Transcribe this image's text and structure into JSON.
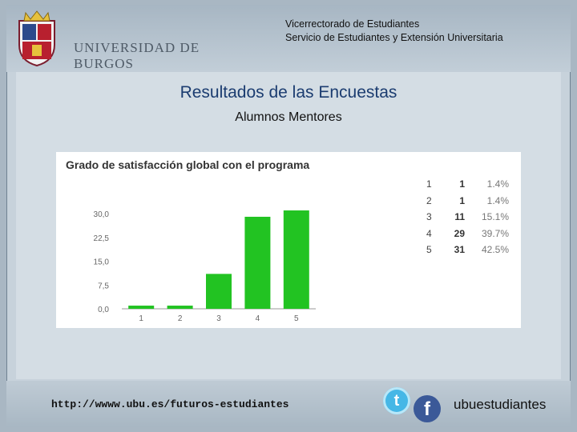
{
  "header": {
    "logo_text": "UNIVERSIDAD DE BURGOS",
    "line1": "Vicerrectorado de Estudiantes",
    "line2": "Servicio de Estudiantes y Extensión Universitaria"
  },
  "slide": {
    "title": "Resultados de las Encuestas",
    "subtitle": "Alumnos Mentores"
  },
  "chart_data": {
    "type": "bar",
    "title": "Grado de satisfacción global con el programa",
    "categories": [
      "1",
      "2",
      "3",
      "4",
      "5"
    ],
    "values": [
      1,
      1,
      11,
      29,
      31
    ],
    "ylim": [
      0,
      30
    ],
    "yticks": [
      "0,0",
      "7,5",
      "15,0",
      "22,5",
      "30,0"
    ],
    "bar_color": "#22c322",
    "grid": false,
    "legend": "none"
  },
  "summary_table": [
    {
      "option": "1",
      "count": "1",
      "percent": "1.4%"
    },
    {
      "option": "2",
      "count": "1",
      "percent": "1.4%"
    },
    {
      "option": "3",
      "count": "11",
      "percent": "15.1%"
    },
    {
      "option": "4",
      "count": "29",
      "percent": "39.7%"
    },
    {
      "option": "5",
      "count": "31",
      "percent": "42.5%"
    }
  ],
  "footer": {
    "url": "http://wwww.ubu.es/futuros-estudiantes",
    "twitter_glyph": "t",
    "facebook_glyph": "f",
    "handle": "ubuestudiantes"
  }
}
